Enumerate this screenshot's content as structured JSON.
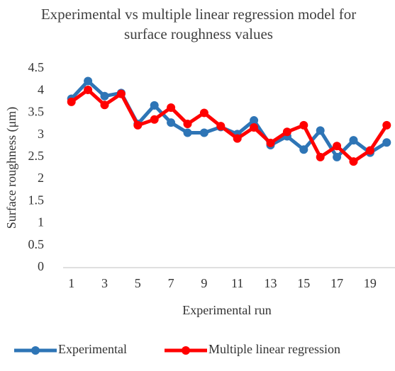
{
  "chart_data": {
    "type": "line",
    "title": "Experimental vs multiple linear regression model for surface roughness values",
    "x_label": "Experimental run",
    "y_label": "Surface roughness (μm)",
    "categories": [
      "1",
      null,
      "3",
      null,
      "5",
      null,
      "7",
      null,
      "9",
      null,
      "11",
      null,
      "13",
      null,
      "15",
      null,
      "17",
      null,
      "19",
      null
    ],
    "series": [
      {
        "name": "Experimental",
        "color": "#2e75b6",
        "values": [
          3.82,
          4.22,
          3.88,
          3.95,
          3.25,
          3.67,
          3.28,
          3.05,
          3.05,
          3.18,
          3.02,
          3.33,
          2.77,
          2.97,
          2.67,
          3.1,
          2.5,
          2.88,
          2.6,
          2.83
        ]
      },
      {
        "name": "Multiple linear regression",
        "color": "#ff0000",
        "values": [
          3.75,
          4.02,
          3.68,
          3.93,
          3.22,
          3.35,
          3.62,
          3.25,
          3.5,
          3.2,
          2.92,
          3.17,
          2.82,
          3.07,
          3.22,
          2.5,
          2.75,
          2.4,
          2.65,
          3.22
        ]
      }
    ],
    "ylim": [
      0,
      4.5
    ],
    "yticks": [
      0,
      0.5,
      1,
      1.5,
      2,
      2.5,
      3,
      3.5,
      4,
      4.5
    ],
    "grid": false,
    "legend": "bottom"
  }
}
